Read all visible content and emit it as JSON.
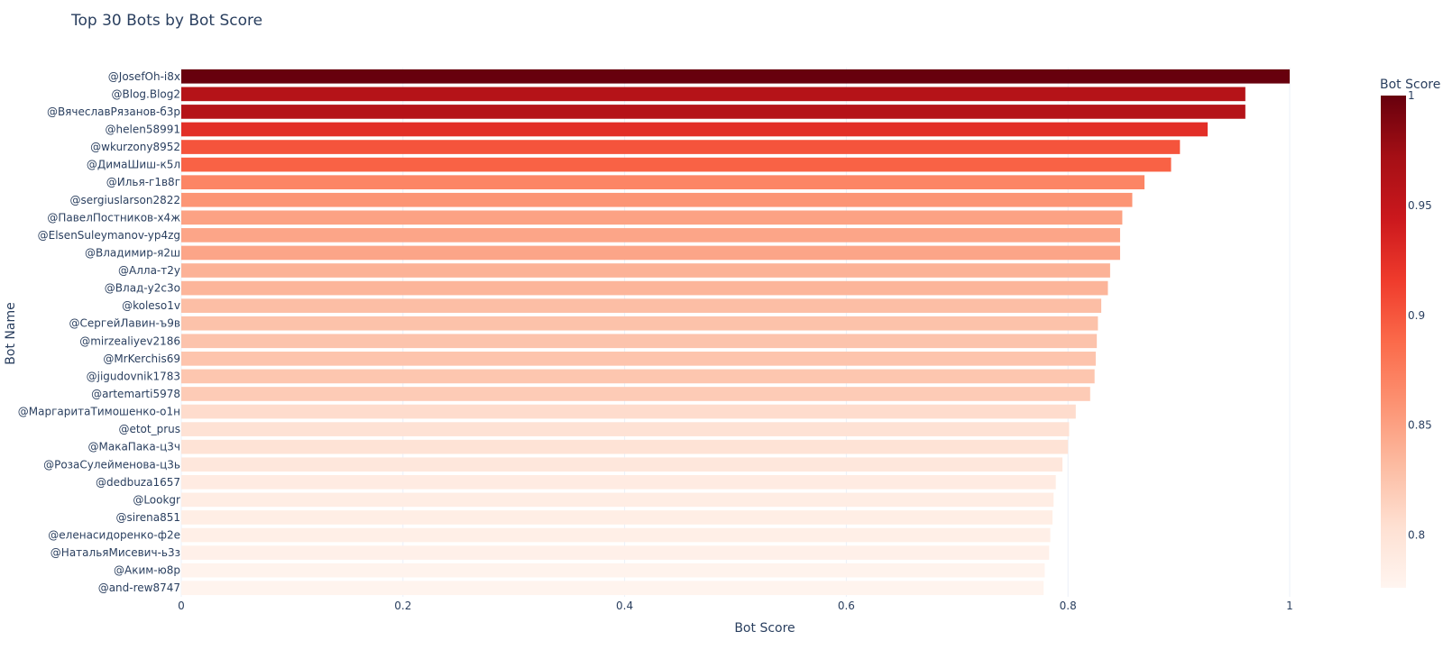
{
  "chart_data": {
    "type": "bar",
    "orientation": "horizontal",
    "title": "Top 30 Bots by Bot Score",
    "xlabel": "Bot Score",
    "ylabel": "Bot Name",
    "xlim": [
      0,
      1
    ],
    "x_ticks": [
      0,
      0.2,
      0.4,
      0.6,
      0.8,
      1
    ],
    "x_tick_labels": [
      "0",
      "0.2",
      "0.4",
      "0.6",
      "0.8",
      "1"
    ],
    "grid": true,
    "colorscale": "Reds",
    "colorbar": {
      "title": "Bot Score",
      "range": [
        0.776,
        1
      ],
      "ticks": [
        0.8,
        0.85,
        0.9,
        0.95,
        1
      ],
      "tick_labels": [
        "0.8",
        "0.85",
        "0.9",
        "0.95",
        "1"
      ],
      "placement": "right"
    },
    "categories": [
      "@JosefOh-i8x",
      "@Blog.Blog2",
      "@ВячеславРязанов-б3р",
      "@helen58991",
      "@wkurzony8952",
      "@ДимаШиш-к5л",
      "@Илья-г1в8г",
      "@sergiuslarson2822",
      "@ПавелПостников-х4ж",
      "@ElsenSuleymanov-yp4zg",
      "@Владимир-я2ш",
      "@Алла-т2у",
      "@Влад-у2с3о",
      "@koleso1v",
      "@СергейЛавин-ъ9в",
      "@mirzealiyev2186",
      "@MrKerchis69",
      "@jigudovnik1783",
      "@artemarti5978",
      "@МаргаритаТимошенко-о1н",
      "@etot_prus",
      "@МакаПака-ц3ч",
      "@РозаСулейменова-ц3ь",
      "@dedbuza1657",
      "@Lookgr",
      "@sirena851",
      "@еленасидоренко-ф2е",
      "@НатальяМисевич-ь3з",
      "@Аким-ю8р",
      "@and-rew8747"
    ],
    "values": [
      1.0,
      0.96,
      0.96,
      0.926,
      0.901,
      0.893,
      0.869,
      0.858,
      0.849,
      0.847,
      0.847,
      0.838,
      0.836,
      0.83,
      0.827,
      0.826,
      0.825,
      0.824,
      0.82,
      0.807,
      0.801,
      0.8,
      0.795,
      0.789,
      0.787,
      0.786,
      0.784,
      0.783,
      0.779,
      0.778
    ]
  }
}
